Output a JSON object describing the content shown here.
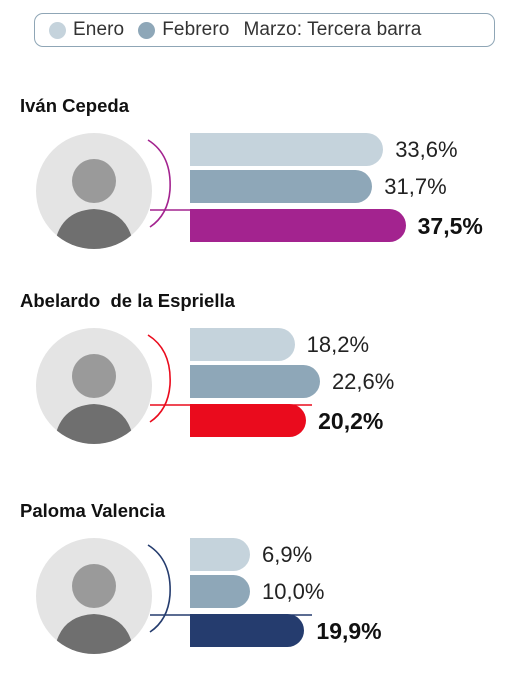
{
  "legend": {
    "items": [
      {
        "label": "Enero",
        "color": "#c5d3dc"
      },
      {
        "label": "Febrero",
        "color": "#8ea7b8"
      },
      {
        "label": "Marzo: Tercera barra",
        "color": null
      }
    ]
  },
  "chart_data": {
    "type": "bar",
    "orientation": "horizontal",
    "categories": [
      "Iván Cepeda",
      "Abelardo  de la Espriella",
      "Paloma Valencia"
    ],
    "series": [
      {
        "name": "Enero",
        "values": [
          33.6,
          18.2,
          6.9
        ],
        "labels": [
          "33,6%",
          "18,2%",
          "6,9%"
        ],
        "color": "#c5d3dc"
      },
      {
        "name": "Febrero",
        "values": [
          31.7,
          22.6,
          10.0
        ],
        "labels": [
          "31,7%",
          "22,6%",
          "10,0%"
        ],
        "color": "#8ea7b8"
      },
      {
        "name": "Marzo: Tercera barra",
        "values": [
          37.5,
          20.2,
          19.9
        ],
        "labels": [
          "37,5%",
          "20,2%",
          "19,9%"
        ],
        "colors": [
          "#a3238f",
          "#ea0b1d",
          "#253c6e"
        ]
      }
    ],
    "unit": "%",
    "grid": false,
    "legend_position": "top"
  },
  "candidates": [
    {
      "name": "Iván Cepeda",
      "accent": "#a3238f",
      "photo_icon": "candidate-portrait-icon"
    },
    {
      "name": "Abelardo  de la Espriella",
      "accent": "#ea0b1d",
      "photo_icon": "candidate-portrait-icon"
    },
    {
      "name": "Paloma Valencia",
      "accent": "#253c6e",
      "photo_icon": "candidate-portrait-icon"
    }
  ]
}
